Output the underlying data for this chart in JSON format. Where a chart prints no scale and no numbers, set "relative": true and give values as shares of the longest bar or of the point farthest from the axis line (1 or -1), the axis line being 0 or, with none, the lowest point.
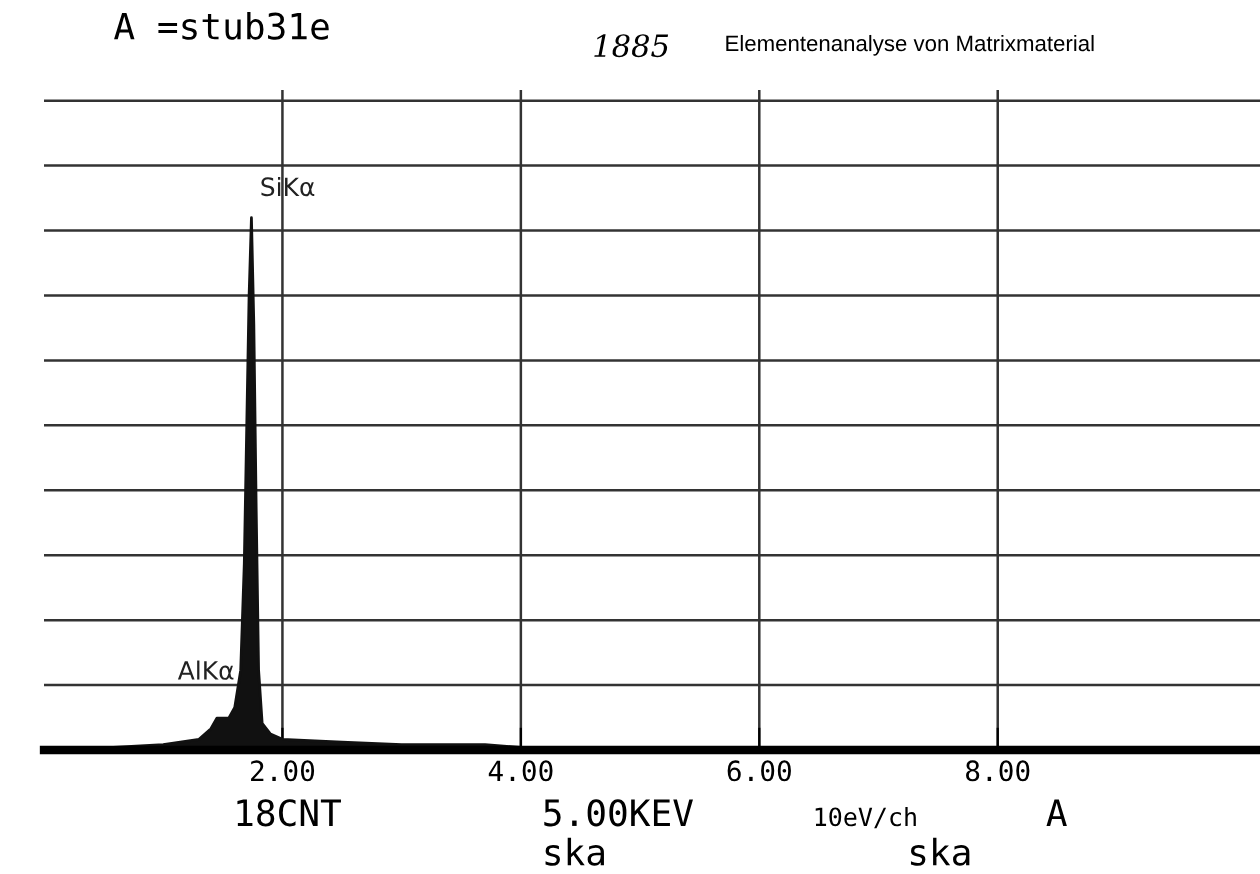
{
  "chart_data": {
    "type": "area",
    "relative": true,
    "color": "#111111",
    "x": [
      0.2,
      1.0,
      1.3,
      1.4,
      1.45,
      1.5,
      1.55,
      1.6,
      1.65,
      1.68,
      1.7,
      1.72,
      1.74,
      1.76,
      1.78,
      1.8,
      1.83,
      1.9,
      2.0,
      2.5,
      3.0,
      3.7,
      4.0,
      10.2
    ],
    "values": [
      0,
      0.01,
      0.02,
      0.04,
      0.06,
      0.06,
      0.06,
      0.08,
      0.15,
      0.35,
      0.6,
      0.85,
      1.0,
      0.8,
      0.45,
      0.15,
      0.05,
      0.03,
      0.02,
      0.015,
      0.01,
      0.01,
      0.005,
      0
    ],
    "xlim": [
      0,
      10.2
    ],
    "xticks": [
      {
        "value": 2,
        "label": "2.00"
      },
      {
        "value": 4,
        "label": "4.00"
      },
      {
        "value": 6,
        "label": "6.00"
      },
      {
        "value": 8,
        "label": "8.00"
      }
    ],
    "grid": true,
    "tick_labels": "x",
    "title": "A =stub31e",
    "subtitle": "Elementenanalyse von Matrixmaterial",
    "annotations": [
      "1885",
      {
        "text": "SiKα",
        "x": 1.74,
        "y": 1.0
      },
      {
        "text": "AlKα",
        "x": 1.5,
        "y": 0.06
      },
      "18CNT",
      "5.00KEV",
      "10eV/ch",
      "A",
      "ska",
      "ska"
    ]
  }
}
